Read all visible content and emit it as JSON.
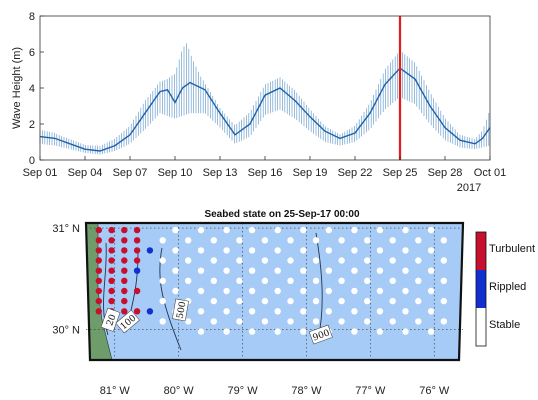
{
  "chart_data": [
    {
      "type": "line",
      "ylabel": "Wave Height (m)",
      "ylim": [
        0,
        8
      ],
      "yticks": [
        0,
        2,
        4,
        6,
        8
      ],
      "xlim_days": [
        1,
        31
      ],
      "xticks": [
        {
          "day": 1,
          "label": "Sep 01"
        },
        {
          "day": 4,
          "label": "Sep 04"
        },
        {
          "day": 7,
          "label": "Sep 07"
        },
        {
          "day": 10,
          "label": "Sep 10"
        },
        {
          "day": 13,
          "label": "Sep 13"
        },
        {
          "day": 16,
          "label": "Sep 16"
        },
        {
          "day": 19,
          "label": "Sep 19"
        },
        {
          "day": 22,
          "label": "Sep 22"
        },
        {
          "day": 25,
          "label": "Sep 25"
        },
        {
          "day": 28,
          "label": "Sep 28"
        },
        {
          "day": 31,
          "label": "Oct 01"
        }
      ],
      "year_label": "2017",
      "series_color": "#3b7fc0",
      "marker": {
        "day": 25.0,
        "color": "#e8191b"
      },
      "mean": [
        {
          "day": 1,
          "y": 1.3
        },
        {
          "day": 2,
          "y": 1.2
        },
        {
          "day": 3,
          "y": 0.9
        },
        {
          "day": 4,
          "y": 0.6
        },
        {
          "day": 5,
          "y": 0.5
        },
        {
          "day": 6,
          "y": 0.8
        },
        {
          "day": 7,
          "y": 1.4
        },
        {
          "day": 8,
          "y": 2.6
        },
        {
          "day": 9,
          "y": 3.8
        },
        {
          "day": 9.5,
          "y": 3.9
        },
        {
          "day": 10,
          "y": 3.2
        },
        {
          "day": 10.5,
          "y": 4.0
        },
        {
          "day": 11,
          "y": 4.3
        },
        {
          "day": 12,
          "y": 3.9
        },
        {
          "day": 13,
          "y": 2.6
        },
        {
          "day": 14,
          "y": 1.4
        },
        {
          "day": 15,
          "y": 2.0
        },
        {
          "day": 16,
          "y": 3.6
        },
        {
          "day": 17,
          "y": 4.0
        },
        {
          "day": 18,
          "y": 3.3
        },
        {
          "day": 19,
          "y": 2.4
        },
        {
          "day": 20,
          "y": 1.6
        },
        {
          "day": 21,
          "y": 1.2
        },
        {
          "day": 22,
          "y": 1.5
        },
        {
          "day": 23,
          "y": 2.6
        },
        {
          "day": 24,
          "y": 4.2
        },
        {
          "day": 25,
          "y": 5.1
        },
        {
          "day": 26,
          "y": 4.5
        },
        {
          "day": 27,
          "y": 3.0
        },
        {
          "day": 28,
          "y": 1.8
        },
        {
          "day": 29,
          "y": 1.1
        },
        {
          "day": 30,
          "y": 0.9
        },
        {
          "day": 30.5,
          "y": 1.2
        },
        {
          "day": 31,
          "y": 1.8
        }
      ],
      "max": [
        {
          "day": 1,
          "y": 1.8
        },
        {
          "day": 2,
          "y": 1.7
        },
        {
          "day": 3,
          "y": 1.3
        },
        {
          "day": 4,
          "y": 0.9
        },
        {
          "day": 5,
          "y": 0.8
        },
        {
          "day": 6,
          "y": 1.2
        },
        {
          "day": 7,
          "y": 1.9
        },
        {
          "day": 8,
          "y": 3.3
        },
        {
          "day": 9,
          "y": 4.4
        },
        {
          "day": 9.5,
          "y": 4.6
        },
        {
          "day": 10,
          "y": 5.2
        },
        {
          "day": 10.5,
          "y": 7.0
        },
        {
          "day": 10.8,
          "y": 7.6
        },
        {
          "day": 11,
          "y": 6.8
        },
        {
          "day": 12,
          "y": 4.5
        },
        {
          "day": 13,
          "y": 3.0
        },
        {
          "day": 14,
          "y": 2.0
        },
        {
          "day": 15,
          "y": 2.7
        },
        {
          "day": 16,
          "y": 4.2
        },
        {
          "day": 17,
          "y": 4.6
        },
        {
          "day": 18,
          "y": 3.9
        },
        {
          "day": 19,
          "y": 2.9
        },
        {
          "day": 20,
          "y": 2.0
        },
        {
          "day": 21,
          "y": 1.6
        },
        {
          "day": 22,
          "y": 2.1
        },
        {
          "day": 23,
          "y": 3.3
        },
        {
          "day": 24,
          "y": 5.1
        },
        {
          "day": 25,
          "y": 6.1
        },
        {
          "day": 26,
          "y": 5.4
        },
        {
          "day": 27,
          "y": 3.8
        },
        {
          "day": 28,
          "y": 2.4
        },
        {
          "day": 29,
          "y": 1.5
        },
        {
          "day": 30,
          "y": 1.3
        },
        {
          "day": 30.5,
          "y": 2.0
        },
        {
          "day": 31,
          "y": 3.4
        }
      ],
      "min": [
        {
          "day": 1,
          "y": 0.9
        },
        {
          "day": 2,
          "y": 0.8
        },
        {
          "day": 3,
          "y": 0.6
        },
        {
          "day": 4,
          "y": 0.4
        },
        {
          "day": 5,
          "y": 0.3
        },
        {
          "day": 6,
          "y": 0.5
        },
        {
          "day": 7,
          "y": 0.9
        },
        {
          "day": 8,
          "y": 1.7
        },
        {
          "day": 9,
          "y": 2.6
        },
        {
          "day": 10,
          "y": 2.3
        },
        {
          "day": 11,
          "y": 2.6
        },
        {
          "day": 12,
          "y": 2.6
        },
        {
          "day": 13,
          "y": 1.8
        },
        {
          "day": 14,
          "y": 0.9
        },
        {
          "day": 15,
          "y": 1.3
        },
        {
          "day": 16,
          "y": 2.5
        },
        {
          "day": 17,
          "y": 2.8
        },
        {
          "day": 18,
          "y": 2.3
        },
        {
          "day": 19,
          "y": 1.6
        },
        {
          "day": 20,
          "y": 1.0
        },
        {
          "day": 21,
          "y": 0.8
        },
        {
          "day": 22,
          "y": 1.0
        },
        {
          "day": 23,
          "y": 1.7
        },
        {
          "day": 24,
          "y": 2.8
        },
        {
          "day": 25,
          "y": 3.5
        },
        {
          "day": 26,
          "y": 3.1
        },
        {
          "day": 27,
          "y": 2.0
        },
        {
          "day": 28,
          "y": 1.1
        },
        {
          "day": 29,
          "y": 0.7
        },
        {
          "day": 30,
          "y": 0.6
        },
        {
          "day": 31,
          "y": 0.8
        }
      ]
    },
    {
      "type": "map",
      "title": "Seabed state on 25-Sep-17 00:00",
      "lon_range": [
        -81.45,
        -75.55
      ],
      "lat_range": [
        29.7,
        31.05
      ],
      "xticks": [
        {
          "lon": -81,
          "label": "81° W"
        },
        {
          "lon": -80,
          "label": "80° W"
        },
        {
          "lon": -79,
          "label": "79° W"
        },
        {
          "lon": -78,
          "label": "78° W"
        },
        {
          "lon": -77,
          "label": "77° W"
        },
        {
          "lon": -76,
          "label": "76° W"
        }
      ],
      "yticks": [
        {
          "lat": 31,
          "label": "31° N"
        },
        {
          "lat": 30,
          "label": "30° N"
        }
      ],
      "colors": {
        "ocean": "#a6cbf6",
        "land": "#6f9c6b",
        "turbulent": "#c8102e",
        "rippled": "#1030d0",
        "stable": "#ffffff"
      },
      "legend": [
        {
          "label": "Turbulent",
          "color": "#c8102e"
        },
        {
          "label": "Rippled",
          "color": "#1030d0"
        },
        {
          "label": "Stable",
          "color": "#ffffff"
        }
      ],
      "contour_labels": [
        "20",
        "100",
        "500",
        "900"
      ],
      "points": {
        "lon_start": -81.25,
        "lon_step": 0.2,
        "cols": 28,
        "lat_start": 30.98,
        "lat_step": -0.1,
        "rows": 11,
        "turbulent": [
          [
            0,
            0
          ],
          [
            0,
            1
          ],
          [
            0,
            2
          ],
          [
            0,
            3
          ],
          [
            1,
            0
          ],
          [
            1,
            1
          ],
          [
            1,
            2
          ],
          [
            1,
            3
          ],
          [
            2,
            0
          ],
          [
            2,
            1
          ],
          [
            2,
            2
          ],
          [
            2,
            3
          ],
          [
            3,
            0
          ],
          [
            3,
            1
          ],
          [
            3,
            2
          ],
          [
            3,
            3
          ],
          [
            4,
            0
          ],
          [
            4,
            1
          ],
          [
            4,
            2
          ],
          [
            5,
            0
          ],
          [
            5,
            1
          ],
          [
            5,
            2
          ],
          [
            6,
            0
          ],
          [
            6,
            1
          ],
          [
            6,
            2
          ],
          [
            6,
            3
          ],
          [
            7,
            0
          ],
          [
            7,
            1
          ],
          [
            7,
            2
          ],
          [
            8,
            0
          ],
          [
            8,
            1
          ],
          [
            8,
            2
          ],
          [
            8,
            3
          ],
          [
            9,
            1
          ],
          [
            9,
            2
          ]
        ],
        "rippled": [
          [
            2,
            4
          ],
          [
            4,
            3
          ],
          [
            8,
            4
          ]
        ],
        "stable_from_col": [
          5,
          4,
          5,
          4,
          5,
          4,
          5,
          4,
          5,
          4,
          7
        ]
      }
    }
  ]
}
